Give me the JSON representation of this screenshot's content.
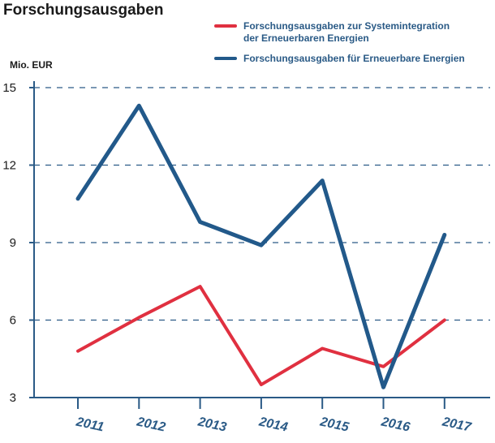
{
  "chart_data": {
    "type": "line",
    "title": "Forschungsausgaben",
    "ylabel": "Mio. EUR",
    "xlabel": "",
    "categories": [
      "2011",
      "2012",
      "2013",
      "2014",
      "2015",
      "2016",
      "2017"
    ],
    "ylim": [
      3,
      15
    ],
    "yticks": [
      "15",
      "12",
      "9",
      "6",
      "3"
    ],
    "grid": true,
    "legend_position": "top-right",
    "series": [
      {
        "name": "Forschungsausgaben zur Systemintegration der Erneuerbaren Energien",
        "legend_lines": [
          "Forschungsausgaben zur Systemintegration",
          "der Erneuerbaren Energien"
        ],
        "color": "#e03040",
        "values": [
          4.8,
          6.1,
          7.3,
          3.5,
          4.9,
          4.2,
          6.0
        ]
      },
      {
        "name": "Forschungsausgaben für Erneuerbare Energien",
        "legend_lines": [
          "Forschungsausgaben für Erneuerbare Energien"
        ],
        "color": "#22598a",
        "values": [
          10.7,
          14.3,
          9.8,
          8.9,
          11.4,
          3.4,
          9.3
        ]
      }
    ]
  },
  "colors": {
    "axis": "#2a5a86",
    "text": "#1a1a1a"
  }
}
